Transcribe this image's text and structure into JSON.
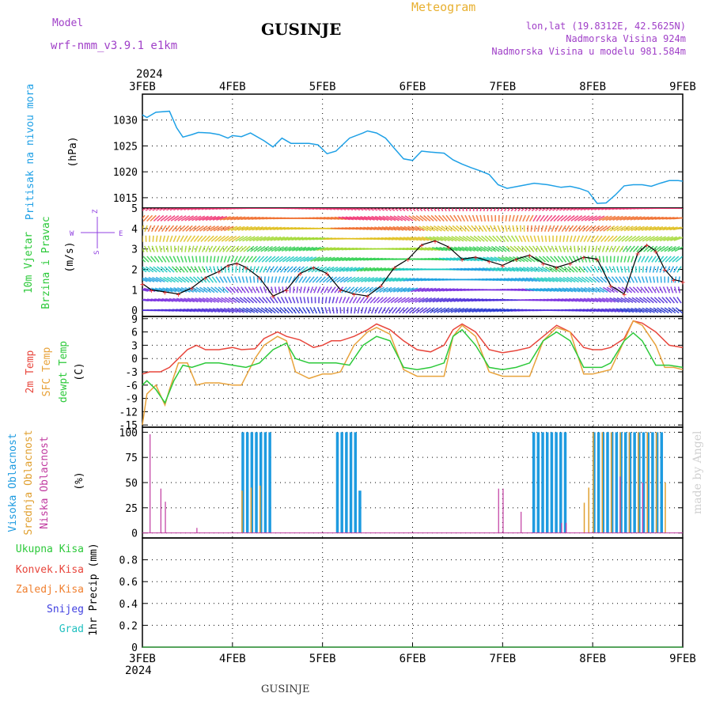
{
  "header": {
    "model_label": "Model",
    "model_name": "wrf-nmm_v3.9.1 e1km",
    "title": "GUSINJE",
    "meteogram": "Meteogram",
    "lonlat": "lon,lat (19.8312E, 42.5625N)",
    "elevation": "Nadmorska Visina 924m",
    "model_elevation": "Nadmorska Visina u modelu 981.584m",
    "year_top": "2024",
    "footer_title": "GUSINJE",
    "watermark": "made by Angel"
  },
  "colors": {
    "pressure": "#1ea0e6",
    "temp2m": "#e8463c",
    "sfc": "#e8a33c",
    "dewpt": "#2cc93a",
    "high_cloud": "#1e9be0",
    "mid_cloud": "#e0a030",
    "low_cloud": "#c03aa0",
    "precip_total": "#2cc93a",
    "precip_conv": "#e8463c",
    "precip_frz": "#f08030",
    "precip_snow": "#4040e0",
    "precip_grad": "#20c0c0",
    "wind_label": "#9040e0"
  },
  "chart_data": [
    {
      "type": "line",
      "panel": "pressure",
      "ylabel": [
        "Pritisak na nivou mora",
        "(hPa)"
      ],
      "x_ticks": [
        "3FEB",
        "4FEB",
        "5FEB",
        "6FEB",
        "7FEB",
        "8FEB",
        "9FEB"
      ],
      "ylim": [
        1013,
        1035
      ],
      "y_ticks": [
        1015,
        1020,
        1025,
        1030
      ],
      "grid": true,
      "series": [
        {
          "x": [
            0,
            0.05,
            0.15,
            0.3,
            0.38,
            0.45,
            0.55,
            0.62,
            0.75,
            0.85,
            0.95,
            1.0,
            1.1,
            1.2,
            1.35,
            1.45,
            1.55,
            1.65,
            1.75,
            1.85,
            1.95,
            2.05,
            2.15,
            2.3,
            2.45,
            2.5,
            2.6,
            2.7,
            2.8,
            2.9,
            3.0,
            3.1,
            3.2,
            3.35,
            3.45,
            3.55,
            3.65,
            3.75,
            3.85,
            3.95,
            4.05,
            4.2,
            4.35,
            4.5,
            4.65,
            4.75,
            4.85,
            4.95,
            5.05,
            5.15,
            5.25,
            5.35,
            5.45,
            5.55,
            5.65,
            5.75,
            5.85,
            5.95,
            6.0
          ],
          "values": [
            1031,
            1030.5,
            1031.5,
            1031.7,
            1028.5,
            1026.7,
            1027.2,
            1027.6,
            1027.5,
            1027.2,
            1026.5,
            1027,
            1026.8,
            1027.5,
            1026,
            1024.8,
            1026.5,
            1025.5,
            1025.5,
            1025.5,
            1025.2,
            1023.5,
            1024,
            1026.5,
            1027.5,
            1027.9,
            1027.5,
            1026.5,
            1024.5,
            1022.5,
            1022.2,
            1024,
            1023.8,
            1023.6,
            1022.3,
            1021.5,
            1020.8,
            1020.2,
            1019.5,
            1017.5,
            1016.8,
            1017.3,
            1017.8,
            1017.5,
            1017,
            1017.2,
            1016.8,
            1016.2,
            1013.9,
            1014,
            1015.5,
            1017.3,
            1017.5,
            1017.5,
            1017.2,
            1017.8,
            1018.3,
            1018.3,
            1018.2
          ],
          "name": ""
        }
      ]
    },
    {
      "type": "line",
      "panel": "wind",
      "ylabel": [
        "10m Vjetar",
        "Brzina i Pravac",
        "(m/s)"
      ],
      "direction_labels": [
        "Z",
        "W",
        "E",
        "S"
      ],
      "ylim": [
        -0.3,
        5
      ],
      "y_ticks": [
        0,
        1,
        2,
        3,
        4,
        5
      ],
      "grid": true,
      "series": [
        {
          "name": "",
          "x": [
            0,
            0.1,
            0.25,
            0.4,
            0.55,
            0.7,
            0.85,
            0.95,
            1.05,
            1.15,
            1.3,
            1.45,
            1.6,
            1.75,
            1.9,
            2.05,
            2.2,
            2.35,
            2.5,
            2.65,
            2.8,
            2.95,
            3.1,
            3.25,
            3.4,
            3.55,
            3.7,
            3.85,
            4.0,
            4.15,
            4.3,
            4.45,
            4.6,
            4.75,
            4.9,
            5.05,
            5.2,
            5.35,
            5.5,
            5.6,
            5.7,
            5.8,
            5.9,
            6.0
          ],
          "values": [
            1.3,
            1.0,
            0.9,
            0.8,
            1.1,
            1.6,
            1.9,
            2.2,
            2.3,
            2.1,
            1.6,
            0.7,
            1.0,
            1.8,
            2.1,
            1.8,
            1.0,
            0.8,
            0.7,
            1.2,
            2.1,
            2.5,
            3.2,
            3.4,
            3.1,
            2.5,
            2.6,
            2.4,
            2.2,
            2.5,
            2.7,
            2.3,
            2.1,
            2.3,
            2.6,
            2.5,
            1.2,
            0.8,
            2.8,
            3.2,
            2.9,
            2.0,
            1.5,
            1.4
          ]
        }
      ]
    },
    {
      "type": "line",
      "panel": "temperature",
      "ylabel": [
        "2m Temp",
        "SFC Temp",
        "dewpt Temp",
        "(C)"
      ],
      "ylim": [
        -15.5,
        9.5
      ],
      "y_ticks": [
        9,
        6,
        3,
        0,
        -3,
        -6,
        -9,
        -12,
        -15
      ],
      "grid": true,
      "series": [
        {
          "name": "2m Temp",
          "x": [
            0,
            0.08,
            0.2,
            0.3,
            0.4,
            0.5,
            0.6,
            0.7,
            0.85,
            1.0,
            1.1,
            1.25,
            1.35,
            1.5,
            1.6,
            1.75,
            1.9,
            2.0,
            2.1,
            2.2,
            2.35,
            2.5,
            2.6,
            2.75,
            2.9,
            3.05,
            3.2,
            3.35,
            3.45,
            3.55,
            3.7,
            3.85,
            4.0,
            4.15,
            4.3,
            4.45,
            4.6,
            4.75,
            4.9,
            5.0,
            5.1,
            5.2,
            5.35,
            5.45,
            5.55,
            5.7,
            5.85,
            6.0
          ],
          "values": [
            -3.5,
            -3,
            -3,
            -2,
            0,
            2,
            3,
            2,
            2,
            2.5,
            2,
            2.2,
            4.5,
            6,
            5,
            4.2,
            2.5,
            3,
            4,
            4,
            5,
            6.5,
            7.8,
            6.5,
            4,
            2,
            1.5,
            3,
            6.5,
            7.8,
            6,
            2,
            1.3,
            1.8,
            2.5,
            5,
            7.5,
            6,
            2.5,
            2,
            2,
            2.5,
            4.5,
            8.5,
            8,
            6,
            3,
            2.5
          ]
        },
        {
          "name": "SFC Temp",
          "x": [
            0,
            0.05,
            0.15,
            0.25,
            0.3,
            0.4,
            0.5,
            0.6,
            0.7,
            0.85,
            1.0,
            1.1,
            1.25,
            1.35,
            1.5,
            1.6,
            1.7,
            1.85,
            2.0,
            2.1,
            2.2,
            2.35,
            2.5,
            2.6,
            2.75,
            2.9,
            3.05,
            3.2,
            3.35,
            3.45,
            3.55,
            3.7,
            3.85,
            4.0,
            4.15,
            4.3,
            4.45,
            4.6,
            4.75,
            4.9,
            5.0,
            5.1,
            5.2,
            5.35,
            5.45,
            5.55,
            5.7,
            5.8,
            5.9,
            6.0
          ],
          "values": [
            -15,
            -8,
            -6,
            -10.5,
            -7,
            -1,
            -1,
            -6,
            -5.5,
            -5.5,
            -6,
            -6,
            0,
            3,
            5,
            4,
            -3,
            -4.5,
            -3.5,
            -3.5,
            -3,
            3,
            6,
            7,
            5.5,
            -2.5,
            -4,
            -4,
            -4,
            5,
            7.5,
            5,
            -3,
            -4,
            -4,
            -4,
            4,
            7,
            6,
            -3.5,
            -3.5,
            -3,
            -2.5,
            4,
            8.5,
            7.5,
            3,
            -2,
            -2,
            -2.5
          ]
        },
        {
          "name": "dewpt Temp",
          "x": [
            0,
            0.05,
            0.15,
            0.25,
            0.35,
            0.45,
            0.55,
            0.7,
            0.85,
            1.0,
            1.15,
            1.3,
            1.45,
            1.6,
            1.7,
            1.85,
            2.0,
            2.15,
            2.3,
            2.45,
            2.6,
            2.75,
            2.9,
            3.05,
            3.2,
            3.35,
            3.45,
            3.55,
            3.7,
            3.85,
            4.0,
            4.15,
            4.3,
            4.45,
            4.6,
            4.75,
            4.9,
            5.0,
            5.1,
            5.2,
            5.35,
            5.45,
            5.55,
            5.7,
            5.85,
            6.0
          ],
          "values": [
            -6,
            -5,
            -7,
            -10,
            -5,
            -1.5,
            -2,
            -1,
            -1,
            -1.5,
            -2,
            -1,
            2,
            3.5,
            0,
            -1,
            -1,
            -1,
            -1.5,
            3,
            5,
            4,
            -2,
            -2.5,
            -2,
            -1,
            5,
            6.5,
            3,
            -2,
            -2.5,
            -2,
            -1,
            4,
            6,
            4,
            -2,
            -2,
            -2,
            -1,
            4,
            5.8,
            4,
            -1.5,
            -1.5,
            -2
          ]
        }
      ]
    },
    {
      "type": "bar",
      "panel": "clouds",
      "ylabel": [
        "Visoka Oblacnost",
        "Srednja Oblacnost",
        "Niska Oblacnost",
        "(%)"
      ],
      "ylim": [
        -5,
        105
      ],
      "y_ticks": [
        0,
        25,
        50,
        75,
        100
      ],
      "grid": true,
      "series": [
        {
          "name": "Visoka Oblacnost",
          "x": [
            1.1,
            1.15,
            1.2,
            1.25,
            1.3,
            1.35,
            1.4,
            2.15,
            2.2,
            2.25,
            2.3,
            2.35,
            2.4,
            4.33,
            4.38,
            4.43,
            4.48,
            4.53,
            4.58,
            4.63,
            4.68,
            5.0,
            5.05,
            5.1,
            5.15,
            5.2,
            5.25,
            5.3,
            5.35,
            5.4,
            5.45,
            5.5,
            5.55,
            5.6,
            5.65,
            5.7,
            5.75
          ],
          "values": [
            100,
            100,
            100,
            100,
            100,
            100,
            100,
            100,
            100,
            100,
            100,
            100,
            42,
            100,
            100,
            100,
            100,
            100,
            100,
            100,
            100,
            100,
            100,
            100,
            100,
            100,
            100,
            100,
            100,
            100,
            100,
            100,
            100,
            100,
            100,
            100,
            100
          ]
        },
        {
          "name": "Srednja Oblacnost",
          "x": [
            1.1,
            1.2,
            1.3,
            4.9,
            4.95,
            5.0,
            5.1,
            5.2,
            5.3,
            5.4,
            5.5,
            5.6,
            5.7,
            5.8
          ],
          "values": [
            42,
            45,
            47,
            30,
            45,
            100,
            100,
            100,
            100,
            100,
            100,
            100,
            100,
            50
          ]
        },
        {
          "name": "Niska Oblacnost",
          "x": [
            0.08,
            0.2,
            0.25,
            0.6,
            3.95,
            4.0,
            4.2,
            4.65,
            4.7,
            5.3,
            5.55
          ],
          "values": [
            98,
            44,
            31,
            5,
            44,
            44,
            21,
            10,
            10,
            56,
            50
          ]
        }
      ]
    },
    {
      "type": "line",
      "panel": "precip",
      "ylabel": [
        "1hr Precip (mm)"
      ],
      "legend": [
        "Ukupna Kisa",
        "Konvek.Kisa",
        "Zaledj.Kisa",
        "Snijeg",
        "Grad"
      ],
      "ylim": [
        0,
        1
      ],
      "y_ticks": [
        0,
        0.2,
        0.4,
        0.6,
        0.8
      ],
      "grid": true,
      "series": [
        {
          "name": "Ukupna Kisa",
          "x": [
            0,
            6
          ],
          "values": [
            0,
            0
          ]
        }
      ]
    }
  ],
  "footer": {
    "year_bottom": "2024"
  }
}
